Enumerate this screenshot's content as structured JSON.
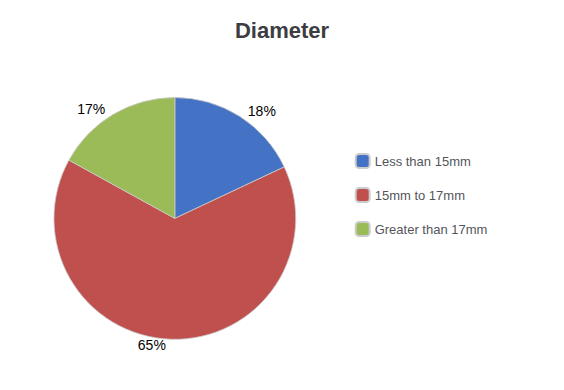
{
  "chart_data": {
    "type": "pie",
    "title": "Diameter",
    "categories": [
      "Less than 15mm",
      "15mm to 17mm",
      "Greater than 17mm"
    ],
    "values": [
      18,
      65,
      17
    ],
    "value_labels": [
      "18%",
      "65%",
      "17%"
    ],
    "colors": [
      "#4472C4",
      "#C0504D",
      "#9BBB59"
    ],
    "data_labels": true,
    "legend": "right"
  }
}
